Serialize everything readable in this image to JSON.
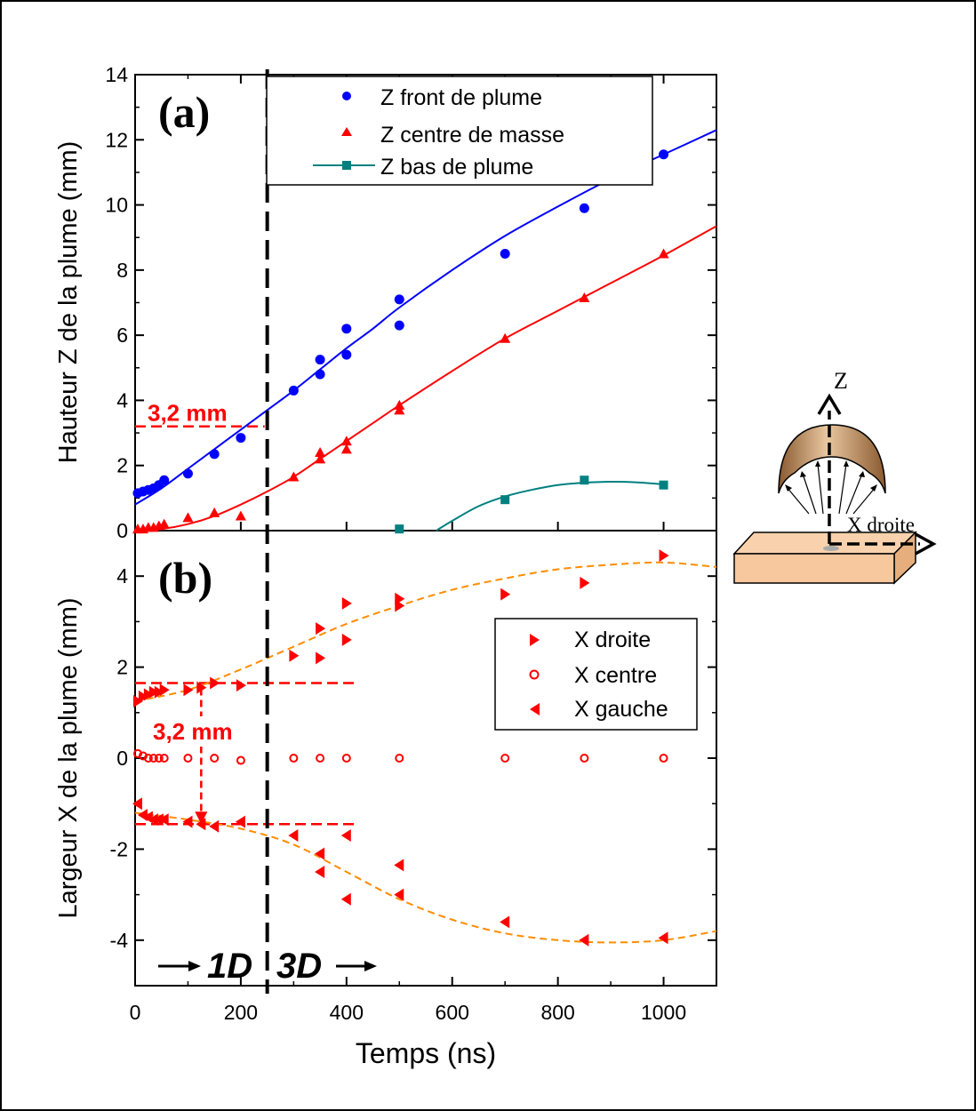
{
  "chart_data": [
    {
      "panel": "(a)",
      "type": "scatter",
      "xlabel": "",
      "ylabel": "Hauteur Z de la plume (mm)",
      "xlim": [
        0,
        1100
      ],
      "ylim": [
        0,
        14
      ],
      "yticks": [
        0,
        2,
        4,
        6,
        8,
        10,
        12,
        14
      ],
      "annotation": "3,2 mm",
      "annotation_y": 3.2,
      "annotation_x_end": 245,
      "series": [
        {
          "name": "Z front de plume",
          "color": "#0000ff",
          "marker": "circle",
          "x": [
            5,
            15,
            25,
            35,
            45,
            55,
            100,
            150,
            200,
            300,
            350,
            350,
            400,
            400,
            500,
            500,
            700,
            850,
            1000
          ],
          "y": [
            1.15,
            1.2,
            1.25,
            1.3,
            1.4,
            1.55,
            1.75,
            2.35,
            2.85,
            4.3,
            4.8,
            5.25,
            5.4,
            6.2,
            6.3,
            7.1,
            8.5,
            9.9,
            11.55
          ],
          "fit_x": [
            0,
            50,
            100,
            150,
            200,
            250,
            300,
            350,
            400,
            450,
            500,
            600,
            700,
            800,
            900,
            1000,
            1100
          ],
          "fit_y": [
            0.8,
            1.3,
            1.9,
            2.5,
            3.1,
            3.7,
            4.3,
            4.95,
            5.6,
            6.2,
            6.85,
            8.0,
            9.05,
            9.95,
            10.8,
            11.55,
            12.3
          ]
        },
        {
          "name": "Z centre de masse",
          "color": "#ff0000",
          "marker": "triangle-up",
          "x": [
            5,
            15,
            25,
            35,
            45,
            55,
            100,
            150,
            200,
            300,
            350,
            350,
            400,
            400,
            500,
            500,
            700,
            850,
            1000
          ],
          "y": [
            0.05,
            0.05,
            0.1,
            0.1,
            0.15,
            0.2,
            0.4,
            0.55,
            0.45,
            1.65,
            2.2,
            2.4,
            2.5,
            2.75,
            3.7,
            3.85,
            5.9,
            7.15,
            8.5
          ],
          "fit_x": [
            0,
            50,
            100,
            150,
            200,
            250,
            300,
            350,
            400,
            450,
            500,
            600,
            700,
            800,
            900,
            1000,
            1100
          ],
          "fit_y": [
            0.0,
            0.05,
            0.2,
            0.45,
            0.8,
            1.2,
            1.65,
            2.2,
            2.75,
            3.3,
            3.85,
            4.9,
            5.9,
            6.75,
            7.6,
            8.45,
            9.35
          ]
        },
        {
          "name": "Z bas de plume",
          "color": "#008080",
          "marker": "square",
          "x": [
            500,
            700,
            850,
            1000
          ],
          "y": [
            0.05,
            0.95,
            1.55,
            1.4
          ],
          "fit_x": [
            570,
            600,
            650,
            700,
            750,
            800,
            850,
            900,
            950,
            1000
          ],
          "fit_y": [
            0.0,
            0.3,
            0.75,
            1.05,
            1.25,
            1.4,
            1.47,
            1.5,
            1.48,
            1.42
          ]
        }
      ]
    },
    {
      "panel": "(b)",
      "type": "scatter",
      "xlabel": "Temps (ns)",
      "ylabel": "Largeur X de la plume (mm)",
      "xlim": [
        0,
        1100
      ],
      "ylim": [
        -5,
        5
      ],
      "yticks": [
        -4,
        -2,
        0,
        2,
        4
      ],
      "xticks": [
        0,
        200,
        400,
        600,
        800,
        1000
      ],
      "annotation": "3,2 mm",
      "annotation_arrow_x": 125,
      "annotation_top_y": 1.65,
      "annotation_bottom_y": -1.45,
      "series": [
        {
          "name": "X droite",
          "color": "#ff0000",
          "marker": "triangle-right",
          "x": [
            5,
            15,
            25,
            35,
            45,
            55,
            100,
            125,
            150,
            200,
            300,
            350,
            350,
            400,
            400,
            500,
            500,
            700,
            850,
            1000
          ],
          "y": [
            1.25,
            1.35,
            1.4,
            1.45,
            1.45,
            1.5,
            1.5,
            1.55,
            1.65,
            1.6,
            2.25,
            2.2,
            2.85,
            2.6,
            3.4,
            3.35,
            3.5,
            3.6,
            3.85,
            4.45
          ]
        },
        {
          "name": "X centre",
          "color": "#ff0000",
          "marker": "open-circle",
          "x": [
            5,
            15,
            25,
            35,
            45,
            55,
            100,
            150,
            200,
            300,
            350,
            400,
            500,
            700,
            850,
            1000
          ],
          "y": [
            0.1,
            0.05,
            0.0,
            0.0,
            0.0,
            0.0,
            0.0,
            0.0,
            -0.05,
            0.0,
            0.0,
            0.0,
            0.0,
            0.0,
            0.0,
            0.0
          ]
        },
        {
          "name": "X gauche",
          "color": "#ff0000",
          "marker": "triangle-left",
          "x": [
            5,
            15,
            25,
            35,
            45,
            55,
            100,
            125,
            150,
            200,
            300,
            350,
            350,
            400,
            400,
            500,
            500,
            700,
            850,
            1000
          ],
          "y": [
            -1.0,
            -1.25,
            -1.3,
            -1.35,
            -1.35,
            -1.35,
            -1.4,
            -1.45,
            -1.5,
            -1.4,
            -1.7,
            -2.1,
            -2.5,
            -1.7,
            -3.1,
            -2.35,
            -3.0,
            -3.6,
            -4.0,
            -3.95
          ]
        },
        {
          "name": "",
          "color": "#ff8c00",
          "marker": "dashed-fit",
          "x": [
            0,
            100,
            200,
            300,
            400,
            500,
            600,
            700,
            800,
            900,
            1000,
            1100
          ],
          "y": [
            1.25,
            1.5,
            1.95,
            2.45,
            2.95,
            3.35,
            3.7,
            3.95,
            4.15,
            4.25,
            4.3,
            4.2
          ]
        },
        {
          "name": "",
          "color": "#ff8c00",
          "marker": "dashed-fit",
          "x": [
            0,
            100,
            200,
            300,
            400,
            500,
            600,
            700,
            800,
            900,
            1000,
            1100
          ],
          "y": [
            -1.2,
            -1.35,
            -1.55,
            -1.9,
            -2.5,
            -3.1,
            -3.55,
            -3.85,
            -4.0,
            -4.05,
            -4.0,
            -3.8
          ]
        }
      ]
    }
  ],
  "regime_boundary_x": 250,
  "labels": {
    "panel_a": "(a)",
    "panel_b": "(b)",
    "regime_1d": "1D",
    "regime_3d": "3D"
  },
  "schematic": {
    "z_label": "Z",
    "x_label": "X droite"
  },
  "colors": {
    "blue": "#0000ff",
    "red": "#ff0000",
    "teal": "#008080",
    "orange_fit": "#ff8c00",
    "dome": "#b07a45",
    "target": "#f7c79e"
  }
}
